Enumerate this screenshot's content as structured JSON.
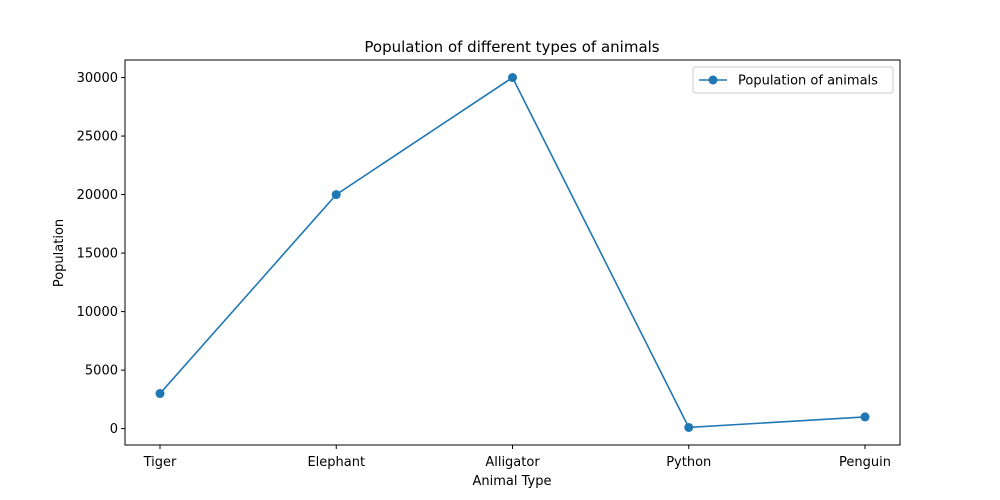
{
  "chart_data": {
    "type": "line",
    "title": "Population of different types of animals",
    "xlabel": "Animal Type",
    "ylabel": "Population",
    "categories": [
      "Tiger",
      "Elephant",
      "Alligator",
      "Python",
      "Penguin"
    ],
    "series": [
      {
        "name": "Population of animals",
        "values": [
          3000,
          20000,
          30000,
          100,
          1000
        ],
        "color": "#1f77b4",
        "marker": "circle"
      }
    ],
    "y_ticks": [
      0,
      5000,
      10000,
      15000,
      20000,
      25000,
      30000
    ],
    "y_tick_labels": [
      "0",
      "5000",
      "10000",
      "15000",
      "20000",
      "25000",
      "30000"
    ],
    "ylim": [
      -1400,
      31500
    ],
    "grid": false,
    "legend_position": "top-right"
  }
}
